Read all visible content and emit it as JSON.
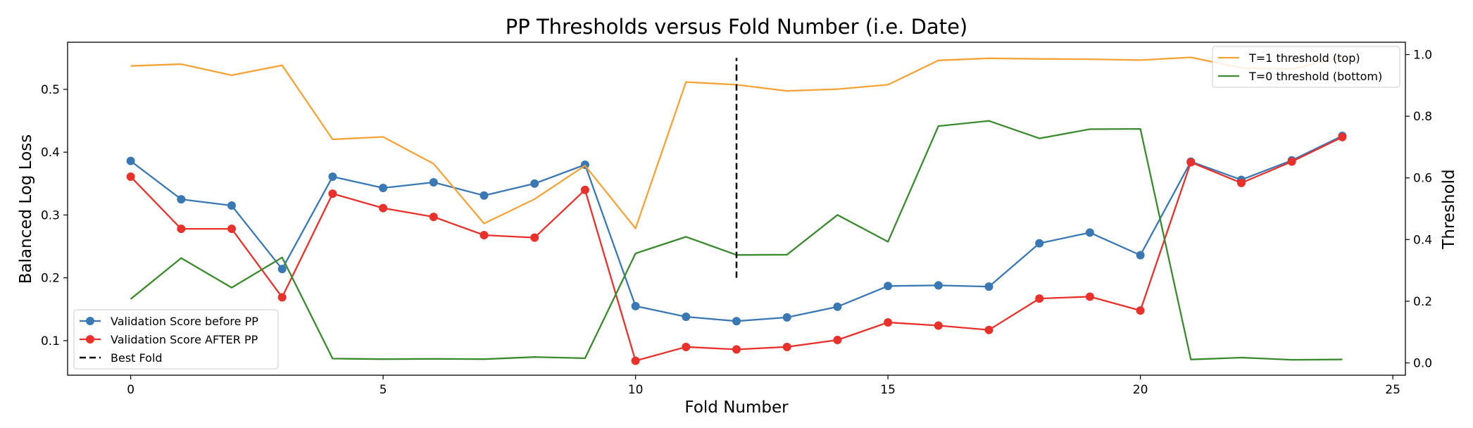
{
  "chart_data": {
    "type": "line",
    "title": "PP Thresholds versus Fold Number (i.e. Date)",
    "xlabel": "Fold Number",
    "ylabel": "Balanced Log Loss",
    "y2label": "Threshold",
    "xlim": [
      -1.25,
      25.25
    ],
    "ylim": [
      0.045,
      0.575
    ],
    "y2lim": [
      -0.04,
      1.04
    ],
    "x_ticks": [
      0,
      5,
      10,
      15,
      20,
      25
    ],
    "y_ticks": [
      0.1,
      0.2,
      0.3,
      0.4,
      0.5
    ],
    "y2_ticks": [
      0.0,
      0.2,
      0.4,
      0.6,
      0.8,
      1.0
    ],
    "x_tick_labels": [
      "0",
      "5",
      "10",
      "15",
      "20",
      "25"
    ],
    "y_tick_labels": [
      "0.1",
      "0.2",
      "0.3",
      "0.4",
      "0.5"
    ],
    "y2_tick_labels": [
      "0.0",
      "0.2",
      "0.4",
      "0.6",
      "0.8",
      "1.0"
    ],
    "grid": false,
    "x": [
      0,
      1,
      2,
      3,
      4,
      5,
      6,
      7,
      8,
      9,
      10,
      11,
      12,
      13,
      14,
      15,
      16,
      17,
      18,
      19,
      20,
      21,
      22,
      23,
      24
    ],
    "series": [
      {
        "name": "Validation Score before PP",
        "axis": "left",
        "color": "#3a78b4",
        "marker": "circle",
        "values": [
          0.386,
          0.325,
          0.315,
          0.214,
          0.361,
          0.343,
          0.352,
          0.331,
          0.35,
          0.38,
          0.155,
          0.138,
          0.131,
          0.137,
          0.154,
          0.187,
          0.188,
          0.186,
          0.255,
          0.272,
          0.236,
          0.385,
          0.356,
          0.387,
          0.426
        ]
      },
      {
        "name": "Validation Score AFTER PP",
        "axis": "left",
        "color": "#e8312b",
        "marker": "circle",
        "values": [
          0.361,
          0.278,
          0.278,
          0.169,
          0.334,
          0.311,
          0.297,
          0.268,
          0.264,
          0.34,
          0.068,
          0.09,
          0.086,
          0.09,
          0.101,
          0.129,
          0.124,
          0.117,
          0.167,
          0.17,
          0.148,
          0.384,
          0.351,
          0.385,
          0.424
        ]
      },
      {
        "name": "T=1 threshold (top)",
        "axis": "right",
        "color": "#f5a336",
        "marker": "none",
        "values": [
          0.963,
          0.969,
          0.933,
          0.965,
          0.725,
          0.733,
          0.646,
          0.452,
          0.531,
          0.64,
          0.436,
          0.911,
          0.902,
          0.882,
          0.888,
          0.902,
          0.981,
          0.988,
          0.986,
          0.985,
          0.982,
          0.991,
          0.957,
          0.953,
          0.993
        ]
      },
      {
        "name": "T=0 threshold (bottom)",
        "axis": "right",
        "color": "#3a8a2e",
        "marker": "none",
        "values": [
          0.207,
          0.34,
          0.244,
          0.342,
          0.014,
          0.012,
          0.013,
          0.012,
          0.019,
          0.015,
          0.355,
          0.409,
          0.35,
          0.351,
          0.48,
          0.393,
          0.768,
          0.785,
          0.728,
          0.758,
          0.759,
          0.011,
          0.017,
          0.01,
          0.011
        ]
      }
    ],
    "best_fold": {
      "name": "Best Fold",
      "x": 12,
      "y_range": [
        0.2,
        0.55
      ],
      "style": "dashed",
      "color": "#000000"
    },
    "legend_left": {
      "placement": "lower-left",
      "entries": [
        "Validation Score before PP",
        "Validation Score AFTER PP",
        "Best Fold"
      ]
    },
    "legend_right": {
      "placement": "upper-right",
      "entries": [
        "T=1 threshold (top)",
        "T=0 threshold (bottom)"
      ]
    }
  }
}
